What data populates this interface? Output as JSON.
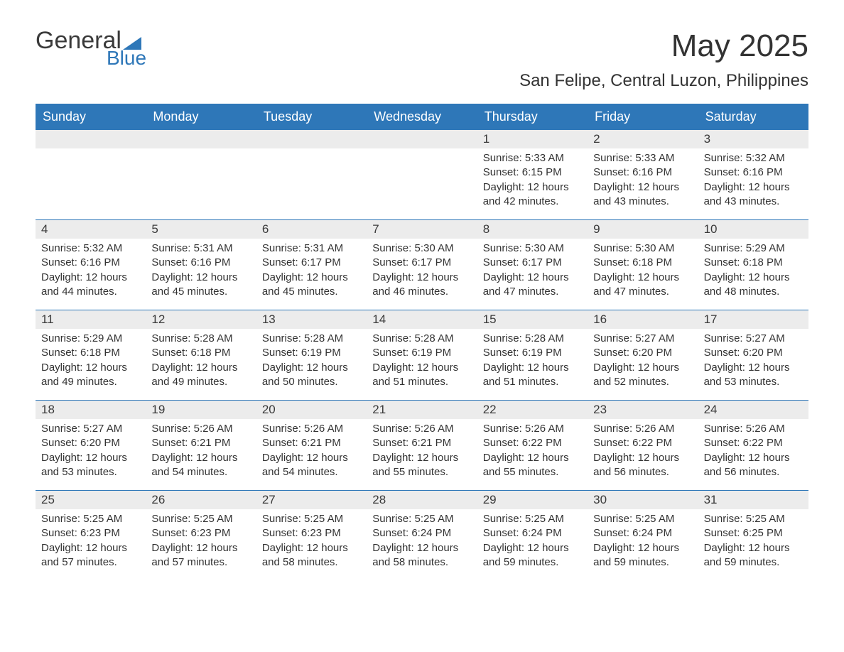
{
  "logo": {
    "word1": "General",
    "word2": "Blue",
    "accent_color": "#2e77b8"
  },
  "header": {
    "month_title": "May 2025",
    "location": "San Felipe, Central Luzon, Philippines"
  },
  "calendar": {
    "weekday_names": [
      "Sunday",
      "Monday",
      "Tuesday",
      "Wednesday",
      "Thursday",
      "Friday",
      "Saturday"
    ],
    "header_bg_color": "#2e77b8",
    "header_text_color": "#ffffff",
    "row_divider_color": "#2e77b8",
    "daynum_bg_color": "#ececec",
    "text_color": "#333333",
    "weeks": [
      [
        null,
        null,
        null,
        null,
        {
          "day": "1",
          "sunrise": "Sunrise: 5:33 AM",
          "sunset": "Sunset: 6:15 PM",
          "daylight": "Daylight: 12 hours and 42 minutes."
        },
        {
          "day": "2",
          "sunrise": "Sunrise: 5:33 AM",
          "sunset": "Sunset: 6:16 PM",
          "daylight": "Daylight: 12 hours and 43 minutes."
        },
        {
          "day": "3",
          "sunrise": "Sunrise: 5:32 AM",
          "sunset": "Sunset: 6:16 PM",
          "daylight": "Daylight: 12 hours and 43 minutes."
        }
      ],
      [
        {
          "day": "4",
          "sunrise": "Sunrise: 5:32 AM",
          "sunset": "Sunset: 6:16 PM",
          "daylight": "Daylight: 12 hours and 44 minutes."
        },
        {
          "day": "5",
          "sunrise": "Sunrise: 5:31 AM",
          "sunset": "Sunset: 6:16 PM",
          "daylight": "Daylight: 12 hours and 45 minutes."
        },
        {
          "day": "6",
          "sunrise": "Sunrise: 5:31 AM",
          "sunset": "Sunset: 6:17 PM",
          "daylight": "Daylight: 12 hours and 45 minutes."
        },
        {
          "day": "7",
          "sunrise": "Sunrise: 5:30 AM",
          "sunset": "Sunset: 6:17 PM",
          "daylight": "Daylight: 12 hours and 46 minutes."
        },
        {
          "day": "8",
          "sunrise": "Sunrise: 5:30 AM",
          "sunset": "Sunset: 6:17 PM",
          "daylight": "Daylight: 12 hours and 47 minutes."
        },
        {
          "day": "9",
          "sunrise": "Sunrise: 5:30 AM",
          "sunset": "Sunset: 6:18 PM",
          "daylight": "Daylight: 12 hours and 47 minutes."
        },
        {
          "day": "10",
          "sunrise": "Sunrise: 5:29 AM",
          "sunset": "Sunset: 6:18 PM",
          "daylight": "Daylight: 12 hours and 48 minutes."
        }
      ],
      [
        {
          "day": "11",
          "sunrise": "Sunrise: 5:29 AM",
          "sunset": "Sunset: 6:18 PM",
          "daylight": "Daylight: 12 hours and 49 minutes."
        },
        {
          "day": "12",
          "sunrise": "Sunrise: 5:28 AM",
          "sunset": "Sunset: 6:18 PM",
          "daylight": "Daylight: 12 hours and 49 minutes."
        },
        {
          "day": "13",
          "sunrise": "Sunrise: 5:28 AM",
          "sunset": "Sunset: 6:19 PM",
          "daylight": "Daylight: 12 hours and 50 minutes."
        },
        {
          "day": "14",
          "sunrise": "Sunrise: 5:28 AM",
          "sunset": "Sunset: 6:19 PM",
          "daylight": "Daylight: 12 hours and 51 minutes."
        },
        {
          "day": "15",
          "sunrise": "Sunrise: 5:28 AM",
          "sunset": "Sunset: 6:19 PM",
          "daylight": "Daylight: 12 hours and 51 minutes."
        },
        {
          "day": "16",
          "sunrise": "Sunrise: 5:27 AM",
          "sunset": "Sunset: 6:20 PM",
          "daylight": "Daylight: 12 hours and 52 minutes."
        },
        {
          "day": "17",
          "sunrise": "Sunrise: 5:27 AM",
          "sunset": "Sunset: 6:20 PM",
          "daylight": "Daylight: 12 hours and 53 minutes."
        }
      ],
      [
        {
          "day": "18",
          "sunrise": "Sunrise: 5:27 AM",
          "sunset": "Sunset: 6:20 PM",
          "daylight": "Daylight: 12 hours and 53 minutes."
        },
        {
          "day": "19",
          "sunrise": "Sunrise: 5:26 AM",
          "sunset": "Sunset: 6:21 PM",
          "daylight": "Daylight: 12 hours and 54 minutes."
        },
        {
          "day": "20",
          "sunrise": "Sunrise: 5:26 AM",
          "sunset": "Sunset: 6:21 PM",
          "daylight": "Daylight: 12 hours and 54 minutes."
        },
        {
          "day": "21",
          "sunrise": "Sunrise: 5:26 AM",
          "sunset": "Sunset: 6:21 PM",
          "daylight": "Daylight: 12 hours and 55 minutes."
        },
        {
          "day": "22",
          "sunrise": "Sunrise: 5:26 AM",
          "sunset": "Sunset: 6:22 PM",
          "daylight": "Daylight: 12 hours and 55 minutes."
        },
        {
          "day": "23",
          "sunrise": "Sunrise: 5:26 AM",
          "sunset": "Sunset: 6:22 PM",
          "daylight": "Daylight: 12 hours and 56 minutes."
        },
        {
          "day": "24",
          "sunrise": "Sunrise: 5:26 AM",
          "sunset": "Sunset: 6:22 PM",
          "daylight": "Daylight: 12 hours and 56 minutes."
        }
      ],
      [
        {
          "day": "25",
          "sunrise": "Sunrise: 5:25 AM",
          "sunset": "Sunset: 6:23 PM",
          "daylight": "Daylight: 12 hours and 57 minutes."
        },
        {
          "day": "26",
          "sunrise": "Sunrise: 5:25 AM",
          "sunset": "Sunset: 6:23 PM",
          "daylight": "Daylight: 12 hours and 57 minutes."
        },
        {
          "day": "27",
          "sunrise": "Sunrise: 5:25 AM",
          "sunset": "Sunset: 6:23 PM",
          "daylight": "Daylight: 12 hours and 58 minutes."
        },
        {
          "day": "28",
          "sunrise": "Sunrise: 5:25 AM",
          "sunset": "Sunset: 6:24 PM",
          "daylight": "Daylight: 12 hours and 58 minutes."
        },
        {
          "day": "29",
          "sunrise": "Sunrise: 5:25 AM",
          "sunset": "Sunset: 6:24 PM",
          "daylight": "Daylight: 12 hours and 59 minutes."
        },
        {
          "day": "30",
          "sunrise": "Sunrise: 5:25 AM",
          "sunset": "Sunset: 6:24 PM",
          "daylight": "Daylight: 12 hours and 59 minutes."
        },
        {
          "day": "31",
          "sunrise": "Sunrise: 5:25 AM",
          "sunset": "Sunset: 6:25 PM",
          "daylight": "Daylight: 12 hours and 59 minutes."
        }
      ]
    ]
  }
}
